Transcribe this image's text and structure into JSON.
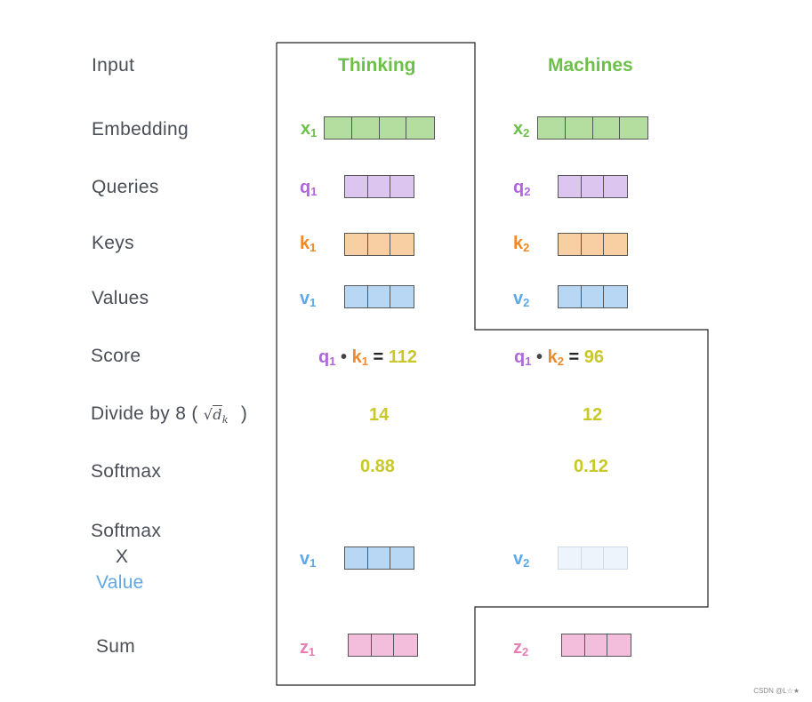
{
  "rows": {
    "input": "Input",
    "embedding": "Embedding",
    "queries": "Queries",
    "keys": "Keys",
    "values": "Values",
    "score": "Score",
    "divide_prefix": "Divide by 8 (",
    "divide_suffix": ")",
    "sqrt_symbol": "√",
    "sqrt_var": "d",
    "sqrt_sub": "k",
    "softmax": "Softmax",
    "softmax2": "Softmax",
    "times": "X",
    "value": "Value",
    "sum": "Sum"
  },
  "words": {
    "w1": "Thinking",
    "w2": "Machines"
  },
  "vars": {
    "x": "x",
    "q": "q",
    "k": "k",
    "v": "v",
    "z": "z",
    "s1": "1",
    "s2": "2"
  },
  "score": {
    "dot": "•",
    "eq": "=",
    "v1": "112",
    "v2": "96"
  },
  "divided": {
    "v1": "14",
    "v2": "12"
  },
  "softmax": {
    "v1": "0.88",
    "v2": "0.12"
  },
  "watermark": "CSDN @L☆★",
  "colors": {
    "green": "#6cc04a",
    "green_fill": "#b3dea0",
    "purple": "#b066dd",
    "purple_fill": "#dcc5ee",
    "orange": "#ee8a2b",
    "orange_fill": "#f8cfa3",
    "blue": "#5fa8e8",
    "blue_fill": "#b7d7f5",
    "blue_faded": "#eef4fc",
    "pink": "#e87eb4",
    "pink_fill": "#f3bedb",
    "yellow": "#c8c828",
    "label": "#4a4e56"
  }
}
